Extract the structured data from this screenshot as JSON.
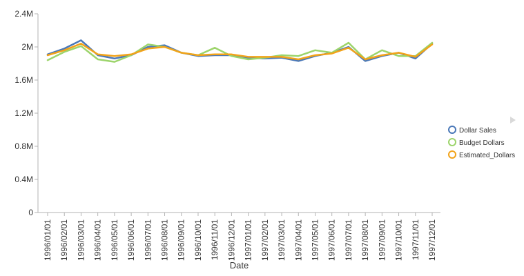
{
  "chart_data": {
    "type": "line",
    "xlabel": "Date",
    "ylabel": "",
    "ylim": [
      0,
      2400000
    ],
    "y_ticks": [
      0,
      400000,
      800000,
      1200000,
      1600000,
      2000000,
      2400000
    ],
    "y_tick_labels": [
      "0",
      "0.4M",
      "0.8M",
      "1.2M",
      "1.6M",
      "2M",
      "2.4M"
    ],
    "grid": false,
    "legend_position": "right",
    "categories": [
      "1996/01/01",
      "1996/02/01",
      "1996/03/01",
      "1996/04/01",
      "1996/05/01",
      "1996/06/01",
      "1996/07/01",
      "1996/08/01",
      "1996/09/01",
      "1996/10/01",
      "1996/11/01",
      "1996/12/01",
      "1997/01/01",
      "1997/02/01",
      "1997/03/01",
      "1997/04/01",
      "1997/05/01",
      "1997/06/01",
      "1997/07/01",
      "1997/08/01",
      "1997/09/01",
      "1997/10/01",
      "1997/11/01",
      "1997/12/01"
    ],
    "series": [
      {
        "name": "Dollar Sales",
        "color": "#4a78b8",
        "values": [
          1910000,
          1980000,
          2080000,
          1900000,
          1860000,
          1900000,
          2000000,
          2020000,
          1930000,
          1890000,
          1900000,
          1900000,
          1870000,
          1860000,
          1870000,
          1830000,
          1890000,
          1930000,
          2000000,
          1830000,
          1890000,
          1930000,
          1860000,
          2040000
        ]
      },
      {
        "name": "Budget Dollars",
        "color": "#9cd46b",
        "values": [
          1840000,
          1940000,
          2010000,
          1850000,
          1820000,
          1900000,
          2030000,
          2000000,
          1930000,
          1900000,
          1990000,
          1890000,
          1850000,
          1870000,
          1900000,
          1890000,
          1960000,
          1930000,
          2050000,
          1850000,
          1960000,
          1890000,
          1890000,
          2050000
        ]
      },
      {
        "name": "Estimated_Dollars",
        "color": "#f2a31a",
        "values": [
          1900000,
          1960000,
          2040000,
          1910000,
          1890000,
          1910000,
          1980000,
          2000000,
          1930000,
          1900000,
          1910000,
          1910000,
          1880000,
          1880000,
          1880000,
          1850000,
          1900000,
          1920000,
          1990000,
          1850000,
          1900000,
          1930000,
          1880000,
          2030000
        ]
      }
    ]
  }
}
